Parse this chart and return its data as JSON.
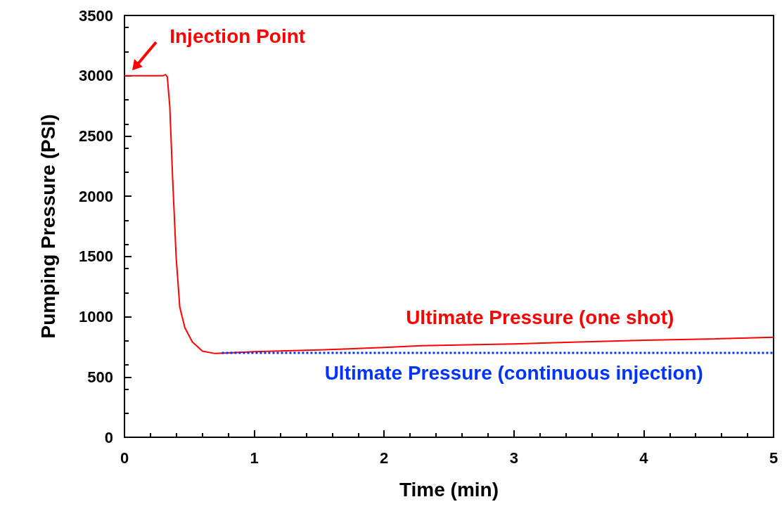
{
  "chart_data": {
    "type": "line",
    "xlabel": "Time (min)",
    "ylabel": "Pumping Pressure (PSI)",
    "xlim": [
      0,
      5
    ],
    "xticks": [
      0,
      1,
      2,
      3,
      4,
      5
    ],
    "ylim": [
      0,
      3500
    ],
    "yticks": [
      0,
      500,
      1000,
      1500,
      2000,
      2500,
      3000,
      3500
    ],
    "grid": false,
    "legend": false,
    "marker": "none",
    "annotations": [
      {
        "text": "Injection Point",
        "x": 0.05,
        "y": 3000
      }
    ],
    "series": [
      {
        "name": "Ultimate Pressure (one shot)",
        "color": "#ff0000",
        "line_style": "solid",
        "x": [
          0,
          0.1,
          0.2,
          0.3,
          0.316,
          0.33,
          0.349,
          0.372,
          0.398,
          0.426,
          0.465,
          0.523,
          0.601,
          0.697,
          0.8,
          1,
          1.5,
          2,
          2.29,
          3,
          3.5,
          4,
          4.5,
          5
        ],
        "values": [
          3000,
          3000,
          3000,
          3000,
          3010,
          2990,
          2745,
          2120,
          1495,
          1080,
          910,
          790,
          715,
          695,
          700,
          710,
          725,
          745,
          760,
          775,
          790,
          805,
          815,
          830
        ]
      },
      {
        "name": "Ultimate Pressure (continuous injection)",
        "color": "#0033ff",
        "line_style": "dotted",
        "x": [
          0.75,
          5
        ],
        "values": [
          700,
          700
        ]
      }
    ]
  }
}
